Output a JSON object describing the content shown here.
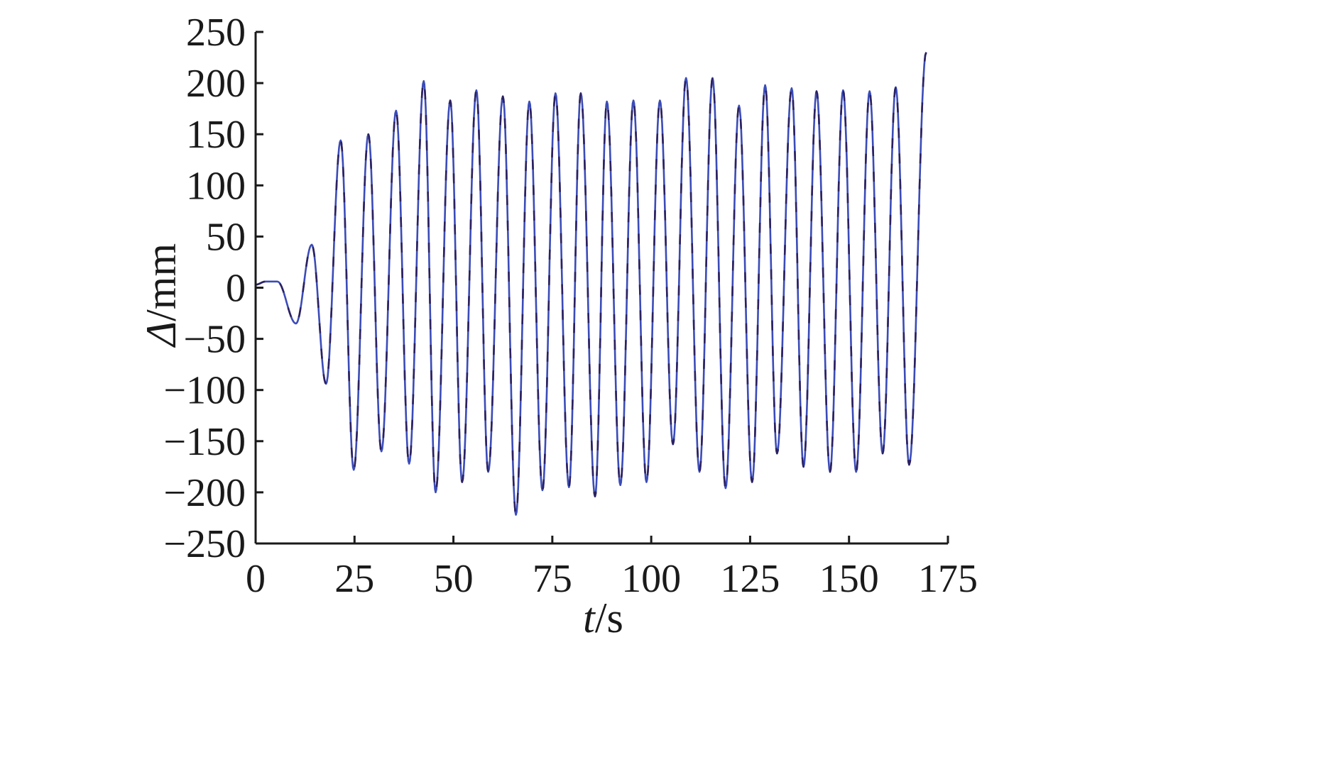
{
  "chart_data": {
    "type": "line",
    "xlabel_italic": "t",
    "xlabel_rest": "/s",
    "ylabel_italic": "Δ",
    "ylabel_rest": "/mm",
    "xlim": [
      0,
      175
    ],
    "ylim": [
      -250,
      250
    ],
    "x_ticks": [
      0,
      25,
      50,
      75,
      100,
      125,
      150,
      175
    ],
    "y_ticks": [
      250,
      200,
      150,
      100,
      50,
      0,
      -50,
      -100,
      -150,
      -200,
      -250
    ],
    "x_tick_labels": [
      "0",
      "25",
      "50",
      "75",
      "100",
      "125",
      "150",
      "175"
    ],
    "y_tick_labels": [
      "250",
      "200",
      "150",
      "100",
      "50",
      "0",
      "−50",
      "−100",
      "−150",
      "−200",
      "−250"
    ],
    "grid": false,
    "colors": {
      "line_primary": "#3b4cb8",
      "line_secondary": "#2b2160",
      "axis": "#1a1a1a"
    },
    "series": [
      {
        "x": [
          0,
          2.5,
          5.5,
          10.2,
          14.2,
          17.8,
          21.5,
          24.8,
          28.5,
          31.8,
          35.5,
          38.8,
          42.5,
          45.5,
          49.2,
          52.2,
          55.8,
          58.8,
          62.5,
          65.8,
          69.2,
          72.5,
          75.8,
          79.2,
          82.2,
          85.8,
          88.8,
          92.2,
          95.5,
          98.8,
          102.2,
          105.5,
          108.8,
          112.2,
          115.5,
          118.8,
          122.2,
          125.5,
          128.8,
          131.8,
          135.5,
          138.5,
          141.8,
          145.2,
          148.5,
          151.8,
          155.2,
          158.5,
          161.8,
          165.2,
          169.5
        ],
        "y": [
          3,
          6,
          6,
          -35,
          42,
          -94,
          144,
          -178,
          150,
          -160,
          173,
          -172,
          202,
          -200,
          183,
          -190,
          193,
          -180,
          187,
          -222,
          182,
          -198,
          190,
          -195,
          190,
          -204,
          182,
          -193,
          183,
          -190,
          183,
          -153,
          205,
          -180,
          205,
          -196,
          178,
          -190,
          198,
          -162,
          195,
          -175,
          192,
          -180,
          193,
          -180,
          192,
          -162,
          196,
          -173,
          230
        ]
      }
    ]
  }
}
